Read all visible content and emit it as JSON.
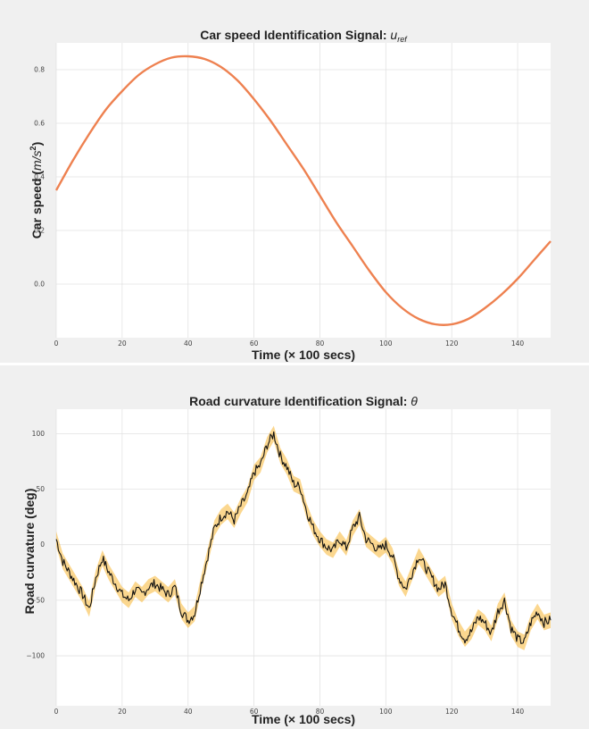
{
  "chart_data": [
    {
      "type": "line",
      "title": "Car speed Identification Signal: ",
      "title_math": "u",
      "title_math_sub": "ref",
      "xlabel": "Time (× 100 secs)",
      "ylabel": "Car speed (",
      "ylabel_math": "m/s",
      "ylabel_sup": "2",
      "ylabel_end": ")",
      "xlim": [
        0,
        150
      ],
      "ylim": [
        -0.2,
        0.9
      ],
      "x_ticks": [
        0,
        20,
        40,
        60,
        80,
        100,
        120,
        140
      ],
      "y_ticks": [
        0.0,
        0.2,
        0.4,
        0.6,
        0.8
      ],
      "grid": true,
      "line_color": "#ee8150",
      "series": [
        {
          "x": [
            0,
            5,
            10,
            15,
            20,
            25,
            30,
            35,
            40,
            45,
            50,
            55,
            60,
            65,
            70,
            75,
            80,
            85,
            90,
            95,
            100,
            105,
            110,
            115,
            120,
            125,
            130,
            135,
            140,
            145,
            150
          ],
          "values": [
            0.35,
            0.46,
            0.56,
            0.65,
            0.72,
            0.78,
            0.82,
            0.845,
            0.85,
            0.84,
            0.81,
            0.76,
            0.69,
            0.61,
            0.52,
            0.43,
            0.33,
            0.23,
            0.14,
            0.05,
            -0.03,
            -0.09,
            -0.13,
            -0.15,
            -0.15,
            -0.13,
            -0.09,
            -0.04,
            0.02,
            0.09,
            0.16
          ]
        }
      ]
    },
    {
      "type": "line",
      "title": "Road curvature Identification Signal: ",
      "title_math": "θ",
      "xlabel": "Time (× 100 secs)",
      "ylabel": "Road curvature (deg)",
      "xlim": [
        0,
        150
      ],
      "ylim": [
        -145,
        122
      ],
      "x_ticks": [
        0,
        20,
        40,
        60,
        80,
        100,
        120,
        140
      ],
      "y_ticks": [
        -100,
        -50,
        0,
        50,
        100
      ],
      "grid": true,
      "line_color": "#111111",
      "band_color": "#f7b733",
      "series": [
        {
          "x": [
            0,
            2,
            4,
            6,
            8,
            10,
            12,
            14,
            16,
            18,
            20,
            22,
            24,
            26,
            28,
            30,
            32,
            34,
            36,
            38,
            40,
            42,
            44,
            46,
            48,
            50,
            52,
            54,
            56,
            58,
            60,
            62,
            64,
            66,
            68,
            70,
            72,
            74,
            76,
            78,
            80,
            82,
            84,
            86,
            88,
            90,
            92,
            94,
            96,
            98,
            100,
            102,
            104,
            106,
            108,
            110,
            112,
            114,
            116,
            118,
            120,
            122,
            124,
            126,
            128,
            130,
            132,
            134,
            136,
            138,
            140,
            142,
            144,
            146,
            148,
            150
          ],
          "values": [
            5,
            -15,
            -25,
            -35,
            -45,
            -58,
            -30,
            -12,
            -25,
            -35,
            -45,
            -50,
            -40,
            -45,
            -38,
            -35,
            -40,
            -45,
            -38,
            -60,
            -68,
            -62,
            -35,
            -10,
            15,
            25,
            30,
            22,
            35,
            45,
            65,
            72,
            90,
            100,
            80,
            70,
            55,
            52,
            30,
            15,
            5,
            -2,
            -5,
            5,
            -3,
            15,
            25,
            5,
            0,
            -5,
            0,
            -10,
            -30,
            -40,
            -25,
            -10,
            -20,
            -30,
            -40,
            -35,
            -60,
            -75,
            -85,
            -78,
            -65,
            -70,
            -80,
            -60,
            -50,
            -75,
            -85,
            -88,
            -70,
            -60,
            -70,
            -68
          ]
        }
      ]
    }
  ]
}
